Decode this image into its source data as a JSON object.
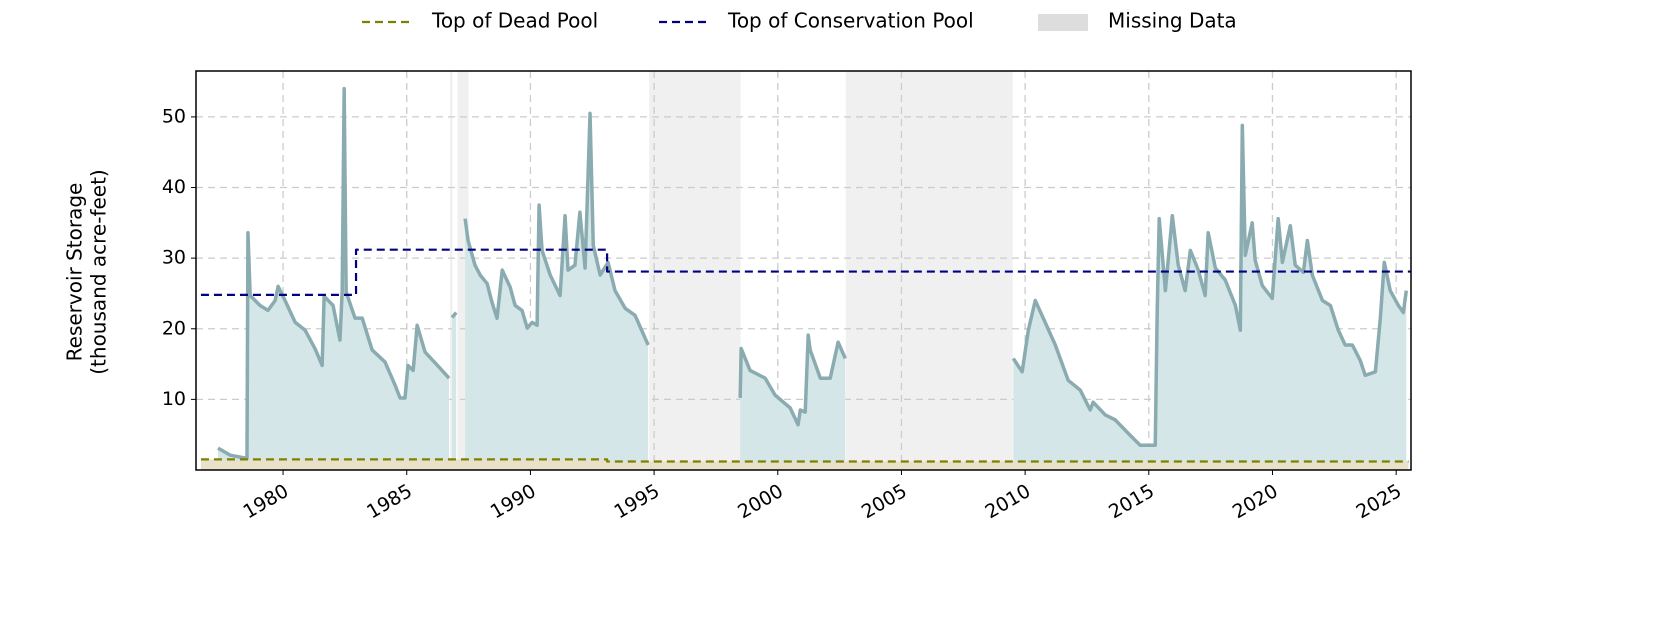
{
  "chart_data": {
    "type": "line",
    "ylabel": [
      "Reservoir Storage",
      "(thousand acre-feet)"
    ],
    "xlim": [
      1976.48,
      2025.6
    ],
    "ylim": [
      0,
      56.5
    ],
    "xticks": [
      1980,
      1985,
      1990,
      1995,
      2000,
      2005,
      2010,
      2015,
      2020,
      2025
    ],
    "yticks": [
      10,
      20,
      30,
      40,
      50
    ],
    "grid": true,
    "legend": "top",
    "storage": {
      "color": "#8aabb0",
      "fill": "#d5e6e8",
      "x": [
        1977.37,
        1977.86,
        1978.46,
        1978.54,
        1978.58,
        1978.67,
        1979.07,
        1979.39,
        1979.68,
        1979.8,
        1980.08,
        1980.49,
        1980.89,
        1981.29,
        1981.58,
        1981.66,
        1982.02,
        1982.3,
        1982.39,
        1982.47,
        1982.55,
        1982.91,
        1983.2,
        1983.6,
        1984.12,
        1984.53,
        1984.73,
        1984.93,
        1985.05,
        1985.26,
        1985.42,
        1985.74,
        1986.35,
        1986.71,
        1986.77,
        1986.83,
        1987.0,
        1987.2,
        1987.36,
        1987.48,
        1987.76,
        1987.97,
        1988.25,
        1988.45,
        1988.65,
        1988.86,
        1989.18,
        1989.38,
        1989.66,
        1989.87,
        1990.07,
        1990.27,
        1990.35,
        1990.47,
        1990.8,
        1991.2,
        1991.4,
        1991.52,
        1991.8,
        1992.0,
        1992.21,
        1992.41,
        1992.54,
        1992.82,
        1993.14,
        1993.42,
        1993.83,
        1994.23,
        1994.76,
        1996.6,
        1998.48,
        1998.52,
        1998.88,
        1999.49,
        1999.89,
        2000.5,
        2000.82,
        2000.91,
        2001.11,
        2001.23,
        2001.31,
        2001.72,
        2002.12,
        2002.44,
        2002.73,
        2006.1,
        2009.52,
        2009.88,
        2010.13,
        2010.41,
        2010.81,
        2011.22,
        2011.74,
        2012.23,
        2012.63,
        2012.75,
        2013.24,
        2013.64,
        2014.25,
        2014.65,
        2015.26,
        2015.34,
        2015.42,
        2015.67,
        2015.95,
        2016.19,
        2016.47,
        2016.68,
        2017.0,
        2017.28,
        2017.4,
        2017.69,
        2018.09,
        2018.5,
        2018.7,
        2018.78,
        2018.9,
        2019.18,
        2019.3,
        2019.59,
        2019.99,
        2020.23,
        2020.4,
        2020.72,
        2020.92,
        2021.25,
        2021.41,
        2021.61,
        2022.02,
        2022.34,
        2022.66,
        2022.94,
        2023.23,
        2023.55,
        2023.75,
        2024.16,
        2024.36,
        2024.52,
        2024.76,
        2025.09,
        2025.29,
        2025.41
      ],
      "values": [
        3.1,
        2.1,
        1.7,
        1.1,
        33.6,
        24.7,
        23.3,
        22.6,
        24,
        26,
        24,
        20.9,
        19.8,
        17.2,
        14.8,
        24.6,
        23.3,
        18.4,
        25.4,
        54,
        25.2,
        21.5,
        21.5,
        17,
        15.3,
        12,
        10.2,
        10.2,
        14.8,
        14.1,
        20.5,
        16.7,
        14.4,
        13,
        null,
        21.6,
        22.3,
        null,
        35.6,
        32.5,
        29,
        27.6,
        26.4,
        23.7,
        21.5,
        28.3,
        25.9,
        23.3,
        22.6,
        20.1,
        20.9,
        20.5,
        37.5,
        31.1,
        27.6,
        24.7,
        36,
        28.3,
        29,
        36.5,
        28.6,
        50.5,
        31.8,
        27.6,
        29.4,
        25.4,
        22.9,
        21.9,
        17.7,
        null,
        10.2,
        17.2,
        14.1,
        13,
        10.6,
        8.8,
        6.4,
        8.5,
        8.2,
        19.1,
        17,
        13,
        13,
        18.1,
        15.8,
        null,
        15.8,
        13.9,
        19.8,
        24,
        20.9,
        17.7,
        12.7,
        11.3,
        8.5,
        9.6,
        7.8,
        7.1,
        4.9,
        3.5,
        3.5,
        22.6,
        35.6,
        25.4,
        36,
        29,
        25.4,
        31.1,
        28.3,
        24.7,
        33.6,
        28.6,
        26.9,
        23.3,
        19.8,
        48.8,
        30.4,
        35,
        29.7,
        26.1,
        24.3,
        35.6,
        29.4,
        34.6,
        29,
        28,
        32.5,
        27.6,
        24,
        23.3,
        19.8,
        17.7,
        17.7,
        15.5,
        13.4,
        13.9,
        21.5,
        29.4,
        25.4,
        23.3,
        22.3,
        25.4
      ]
    },
    "series": [
      {
        "name": "Top of Dead Pool",
        "color": "#808000",
        "fill": "#e8e2cb",
        "x": [
          1976.68,
          1993.1,
          1993.1,
          2025.5
        ],
        "values": [
          1.5,
          1.5,
          1.2,
          1.2
        ]
      },
      {
        "name": "Top of Conservation Pool",
        "color": "#000080",
        "x": [
          1976.68,
          1982.95,
          1982.95,
          1993.1,
          1993.1,
          2025.6
        ],
        "values": [
          24.8,
          24.8,
          31.2,
          31.2,
          28.1,
          28.1
        ]
      }
    ],
    "missing_data": {
      "name": "Missing Data",
      "color": "#f0f0f0",
      "legend_color": "#dddddd",
      "spans": [
        [
          1986.75,
          1986.85
        ],
        [
          1987.05,
          1987.5
        ],
        [
          1994.8,
          1998.5
        ],
        [
          2002.75,
          2009.5
        ]
      ]
    }
  }
}
